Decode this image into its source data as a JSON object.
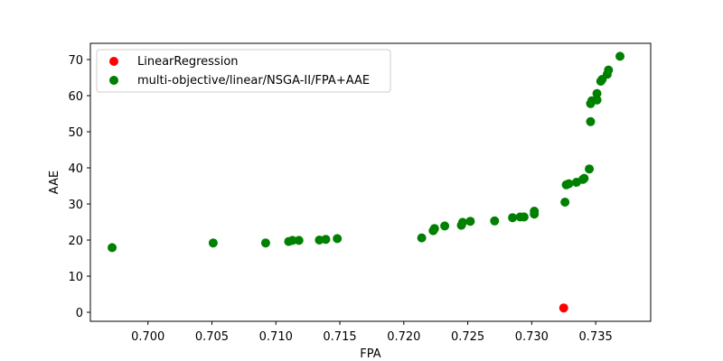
{
  "chart_data": {
    "type": "scatter",
    "title": "",
    "xlabel": "FPA",
    "ylabel": "AAE",
    "xlim": [
      0.6955,
      0.7393
    ],
    "ylim": [
      -2.5,
      74.5
    ],
    "xticks": [
      0.7,
      0.705,
      0.71,
      0.715,
      0.72,
      0.725,
      0.73,
      0.735
    ],
    "xtick_labels": [
      "0.700",
      "0.705",
      "0.710",
      "0.715",
      "0.720",
      "0.725",
      "0.730",
      "0.735"
    ],
    "yticks": [
      0,
      10,
      20,
      30,
      40,
      50,
      60,
      70
    ],
    "ytick_labels": [
      "0",
      "10",
      "20",
      "30",
      "40",
      "50",
      "60",
      "70"
    ],
    "grid": false,
    "legend_position": "top-left",
    "series": [
      {
        "name": "LinearRegression",
        "color": "#ff0000",
        "points": [
          [
            0.7325,
            1.2
          ]
        ]
      },
      {
        "name": "multi-objective/linear/NSGA-II/FPA+AAE",
        "color": "#008000",
        "points": [
          [
            0.6972,
            17.9
          ],
          [
            0.7051,
            19.2
          ],
          [
            0.7092,
            19.2
          ],
          [
            0.711,
            19.6
          ],
          [
            0.7113,
            19.9
          ],
          [
            0.7118,
            19.9
          ],
          [
            0.7134,
            20.0
          ],
          [
            0.7139,
            20.2
          ],
          [
            0.7148,
            20.4
          ],
          [
            0.7214,
            20.6
          ],
          [
            0.7223,
            22.6
          ],
          [
            0.7224,
            23.2
          ],
          [
            0.7232,
            23.9
          ],
          [
            0.7245,
            24.1
          ],
          [
            0.7246,
            24.9
          ],
          [
            0.7252,
            25.2
          ],
          [
            0.7271,
            25.3
          ],
          [
            0.7285,
            26.2
          ],
          [
            0.7291,
            26.4
          ],
          [
            0.7294,
            26.4
          ],
          [
            0.7302,
            27.2
          ],
          [
            0.7302,
            28.0
          ],
          [
            0.7326,
            30.5
          ],
          [
            0.7327,
            35.3
          ],
          [
            0.7329,
            35.6
          ],
          [
            0.7335,
            36.0
          ],
          [
            0.734,
            36.8
          ],
          [
            0.7341,
            37.1
          ],
          [
            0.7345,
            39.7
          ],
          [
            0.7346,
            52.8
          ],
          [
            0.7346,
            57.8
          ],
          [
            0.7347,
            58.6
          ],
          [
            0.7351,
            58.8
          ],
          [
            0.7351,
            60.6
          ],
          [
            0.7354,
            64.0
          ],
          [
            0.7355,
            64.5
          ],
          [
            0.7359,
            65.9
          ],
          [
            0.736,
            67.1
          ],
          [
            0.7369,
            70.9
          ]
        ]
      }
    ]
  }
}
